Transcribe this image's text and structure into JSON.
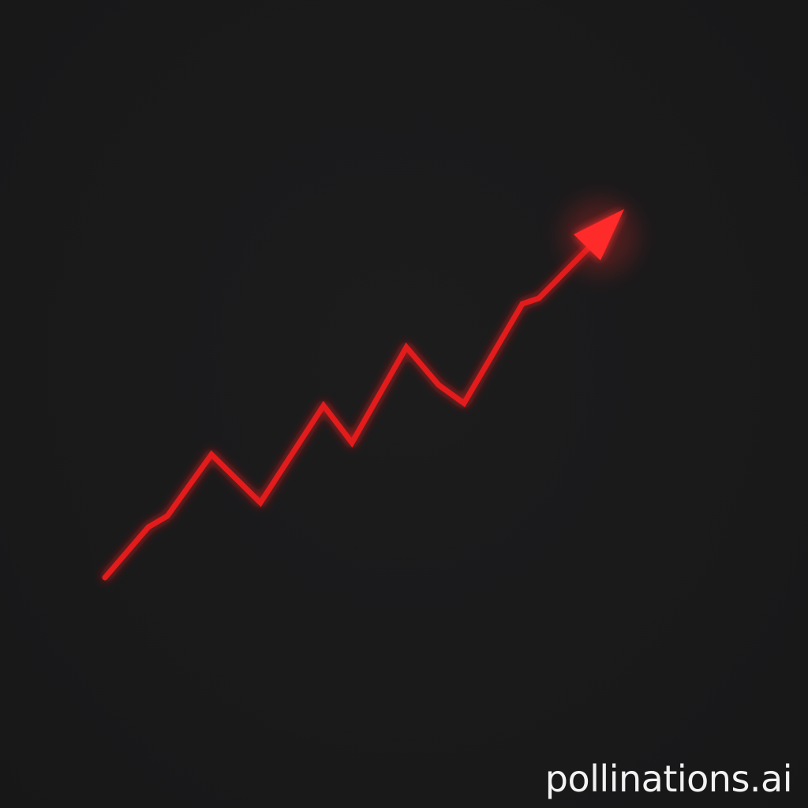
{
  "image": {
    "background_color": "#1a1a1b",
    "arrow_color": "#e21a1a",
    "arrow_glow_color": "#ff2a2a",
    "icon": "upward-trend-arrow-icon"
  },
  "watermark": {
    "text": "pollinations.ai",
    "color": "#f2f2f2"
  }
}
